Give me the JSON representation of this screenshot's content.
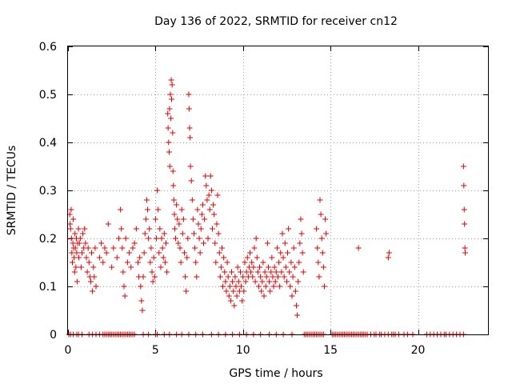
{
  "chart_data": {
    "type": "scatter",
    "title": "Day 136 of 2022, SRMTID for receiver cn12",
    "xlabel": "GPS time / hours",
    "ylabel": "SRMTID / TECUs",
    "xlim": [
      0,
      24
    ],
    "ylim": [
      0,
      0.6
    ],
    "xticks": [
      0,
      5,
      10,
      15,
      20
    ],
    "yticks": [
      0,
      0.1,
      0.2,
      0.3,
      0.4,
      0.5,
      0.6
    ],
    "xtick_labels": [
      "0",
      "5",
      "10",
      "15",
      "20"
    ],
    "ytick_labels": [
      "0",
      "0.1",
      "0.2",
      "0.3",
      "0.4",
      "0.5",
      "0.6"
    ],
    "grid": true,
    "marker": "+",
    "color": "#e00000",
    "series": [
      {
        "name": "SRMTID",
        "points": [
          [
            0.1,
            0.25
          ],
          [
            0.12,
            0.23
          ],
          [
            0.15,
            0.22
          ],
          [
            0.18,
            0.26
          ],
          [
            0.2,
            0.2
          ],
          [
            0.22,
            0.17
          ],
          [
            0.25,
            0.15
          ],
          [
            0.28,
            0.19
          ],
          [
            0.3,
            0.24
          ],
          [
            0.32,
            0.18
          ],
          [
            0.35,
            0.16
          ],
          [
            0.38,
            0.13
          ],
          [
            0.4,
            0.21
          ],
          [
            0.42,
            0.18
          ],
          [
            0.45,
            0.14
          ],
          [
            0.48,
            0.2
          ],
          [
            0.5,
            0.17
          ],
          [
            0.52,
            0.11
          ],
          [
            0.55,
            0.19
          ],
          [
            0.6,
            0.22
          ],
          [
            0.62,
            0.16
          ],
          [
            0.65,
            0.19
          ],
          [
            0.7,
            0.2
          ],
          [
            0.75,
            0.14
          ],
          [
            0.8,
            0.17
          ],
          [
            0.85,
            0.21
          ],
          [
            0.9,
            0.18
          ],
          [
            0.95,
            0.22
          ],
          [
            1.0,
            0.19
          ],
          [
            1.05,
            0.16
          ],
          [
            1.1,
            0.13
          ],
          [
            1.15,
            0.18
          ],
          [
            1.2,
            0.15
          ],
          [
            1.25,
            0.12
          ],
          [
            1.3,
            0.11
          ],
          [
            1.35,
            0.17
          ],
          [
            1.4,
            0.09
          ],
          [
            1.45,
            0.14
          ],
          [
            1.5,
            0.12
          ],
          [
            1.55,
            0.18
          ],
          [
            1.6,
            0.1
          ],
          [
            1.8,
            0.16
          ],
          [
            1.9,
            0.19
          ],
          [
            2.0,
            0.15
          ],
          [
            2.1,
            0.18
          ],
          [
            2.2,
            0.17
          ],
          [
            2.3,
            0.23
          ],
          [
            2.5,
            0.14
          ],
          [
            2.6,
            0.18
          ],
          [
            2.8,
            0.16
          ],
          [
            2.9,
            0.2
          ],
          [
            3.0,
            0.26
          ],
          [
            3.05,
            0.22
          ],
          [
            3.1,
            0.18
          ],
          [
            3.15,
            0.13
          ],
          [
            3.2,
            0.1
          ],
          [
            3.25,
            0.08
          ],
          [
            3.3,
            0.2
          ],
          [
            3.4,
            0.15
          ],
          [
            3.5,
            0.17
          ],
          [
            3.6,
            0.14
          ],
          [
            3.7,
            0.18
          ],
          [
            3.8,
            0.19
          ],
          [
            3.9,
            0.22
          ],
          [
            4.0,
            0.15
          ],
          [
            4.05,
            0.12
          ],
          [
            4.1,
            0.16
          ],
          [
            4.15,
            0.1
          ],
          [
            4.2,
            0.07
          ],
          [
            4.25,
            0.05
          ],
          [
            4.3,
            0.12
          ],
          [
            4.35,
            0.17
          ],
          [
            4.4,
            0.21
          ],
          [
            4.45,
            0.24
          ],
          [
            4.5,
            0.28
          ],
          [
            4.55,
            0.26
          ],
          [
            4.6,
            0.2
          ],
          [
            4.65,
            0.22
          ],
          [
            4.7,
            0.15
          ],
          [
            4.75,
            0.18
          ],
          [
            4.8,
            0.13
          ],
          [
            4.85,
            0.11
          ],
          [
            4.9,
            0.16
          ],
          [
            4.95,
            0.12
          ],
          [
            5.0,
            0.24
          ],
          [
            5.05,
            0.2
          ],
          [
            5.1,
            0.3
          ],
          [
            5.15,
            0.26
          ],
          [
            5.2,
            0.17
          ],
          [
            5.25,
            0.22
          ],
          [
            5.3,
            0.14
          ],
          [
            5.35,
            0.2
          ],
          [
            5.4,
            0.18
          ],
          [
            5.45,
            0.16
          ],
          [
            5.5,
            0.21
          ],
          [
            5.55,
            0.15
          ],
          [
            5.6,
            0.19
          ],
          [
            5.65,
            0.13
          ],
          [
            5.7,
            0.46
          ],
          [
            5.72,
            0.43
          ],
          [
            5.75,
            0.4
          ],
          [
            5.78,
            0.38
          ],
          [
            5.8,
            0.47
          ],
          [
            5.82,
            0.35
          ],
          [
            5.85,
            0.5
          ],
          [
            5.88,
            0.45
          ],
          [
            5.9,
            0.53
          ],
          [
            5.92,
            0.49
          ],
          [
            5.95,
            0.52
          ],
          [
            5.98,
            0.42
          ],
          [
            6.0,
            0.34
          ],
          [
            6.02,
            0.31
          ],
          [
            6.05,
            0.28
          ],
          [
            6.08,
            0.25
          ],
          [
            6.1,
            0.22
          ],
          [
            6.15,
            0.2
          ],
          [
            6.2,
            0.27
          ],
          [
            6.25,
            0.24
          ],
          [
            6.3,
            0.19
          ],
          [
            6.35,
            0.23
          ],
          [
            6.4,
            0.18
          ],
          [
            6.45,
            0.15
          ],
          [
            6.5,
            0.26
          ],
          [
            6.55,
            0.21
          ],
          [
            6.6,
            0.24
          ],
          [
            6.65,
            0.17
          ],
          [
            6.7,
            0.12
          ],
          [
            6.75,
            0.09
          ],
          [
            6.8,
            0.16
          ],
          [
            6.85,
            0.2
          ],
          [
            6.9,
            0.5
          ],
          [
            6.92,
            0.47
          ],
          [
            6.95,
            0.43
          ],
          [
            6.98,
            0.41
          ],
          [
            7.0,
            0.35
          ],
          [
            7.05,
            0.32
          ],
          [
            7.1,
            0.28
          ],
          [
            7.15,
            0.24
          ],
          [
            7.2,
            0.21
          ],
          [
            7.25,
            0.18
          ],
          [
            7.3,
            0.15
          ],
          [
            7.35,
            0.12
          ],
          [
            7.4,
            0.26
          ],
          [
            7.45,
            0.23
          ],
          [
            7.5,
            0.2
          ],
          [
            7.55,
            0.17
          ],
          [
            7.6,
            0.22
          ],
          [
            7.65,
            0.25
          ],
          [
            7.7,
            0.27
          ],
          [
            7.75,
            0.19
          ],
          [
            7.8,
            0.24
          ],
          [
            7.85,
            0.33
          ],
          [
            7.9,
            0.31
          ],
          [
            7.95,
            0.28
          ],
          [
            8.0,
            0.2
          ],
          [
            8.05,
            0.29
          ],
          [
            8.1,
            0.26
          ],
          [
            8.15,
            0.33
          ],
          [
            8.2,
            0.3
          ],
          [
            8.25,
            0.22
          ],
          [
            8.3,
            0.27
          ],
          [
            8.35,
            0.25
          ],
          [
            8.4,
            0.19
          ],
          [
            8.45,
            0.15
          ],
          [
            8.5,
            0.23
          ],
          [
            8.55,
            0.29
          ],
          [
            8.6,
            0.21
          ],
          [
            8.65,
            0.17
          ],
          [
            8.7,
            0.12
          ],
          [
            8.75,
            0.14
          ],
          [
            8.8,
            0.18
          ],
          [
            8.85,
            0.1
          ],
          [
            8.9,
            0.16
          ],
          [
            8.95,
            0.13
          ],
          [
            9.0,
            0.11
          ],
          [
            9.05,
            0.09
          ],
          [
            9.1,
            0.15
          ],
          [
            9.15,
            0.12
          ],
          [
            9.2,
            0.08
          ],
          [
            9.25,
            0.1
          ],
          [
            9.3,
            0.07
          ],
          [
            9.35,
            0.13
          ],
          [
            9.4,
            0.11
          ],
          [
            9.45,
            0.09
          ],
          [
            9.5,
            0.06
          ],
          [
            9.55,
            0.12
          ],
          [
            9.6,
            0.1
          ],
          [
            9.65,
            0.08
          ],
          [
            9.7,
            0.14
          ],
          [
            9.75,
            0.11
          ],
          [
            9.8,
            0.09
          ],
          [
            9.85,
            0.13
          ],
          [
            9.9,
            0.1
          ],
          [
            9.95,
            0.07
          ],
          [
            10.0,
            0.12
          ],
          [
            10.05,
            0.09
          ],
          [
            10.1,
            0.15
          ],
          [
            10.15,
            0.11
          ],
          [
            10.2,
            0.13
          ],
          [
            10.25,
            0.16
          ],
          [
            10.3,
            0.12
          ],
          [
            10.35,
            0.14
          ],
          [
            10.4,
            0.17
          ],
          [
            10.45,
            0.13
          ],
          [
            10.5,
            0.15
          ],
          [
            10.55,
            0.12
          ],
          [
            10.6,
            0.14
          ],
          [
            10.65,
            0.18
          ],
          [
            10.7,
            0.11
          ],
          [
            10.75,
            0.2
          ],
          [
            10.8,
            0.16
          ],
          [
            10.85,
            0.13
          ],
          [
            10.9,
            0.1
          ],
          [
            10.95,
            0.14
          ],
          [
            11.0,
            0.12
          ],
          [
            11.05,
            0.09
          ],
          [
            11.1,
            0.11
          ],
          [
            11.15,
            0.15
          ],
          [
            11.2,
            0.08
          ],
          [
            11.25,
            0.13
          ],
          [
            11.3,
            0.1
          ],
          [
            11.35,
            0.12
          ],
          [
            11.4,
            0.19
          ],
          [
            11.45,
            0.14
          ],
          [
            11.5,
            0.11
          ],
          [
            11.55,
            0.09
          ],
          [
            11.6,
            0.13
          ],
          [
            11.65,
            0.16
          ],
          [
            11.7,
            0.12
          ],
          [
            11.75,
            0.1
          ],
          [
            11.8,
            0.14
          ],
          [
            11.85,
            0.11
          ],
          [
            11.9,
            0.13
          ],
          [
            11.95,
            0.18
          ],
          [
            12.0,
            0.12
          ],
          [
            12.05,
            0.15
          ],
          [
            12.1,
            0.1
          ],
          [
            12.15,
            0.17
          ],
          [
            12.2,
            0.13
          ],
          [
            12.25,
            0.21
          ],
          [
            12.3,
            0.16
          ],
          [
            12.35,
            0.12
          ],
          [
            12.4,
            0.19
          ],
          [
            12.45,
            0.14
          ],
          [
            12.5,
            0.11
          ],
          [
            12.55,
            0.17
          ],
          [
            12.6,
            0.22
          ],
          [
            12.65,
            0.13
          ],
          [
            12.7,
            0.1
          ],
          [
            12.75,
            0.15
          ],
          [
            12.8,
            0.08
          ],
          [
            12.85,
            0.12
          ],
          [
            12.9,
            0.18
          ],
          [
            12.95,
            0.14
          ],
          [
            13.0,
            0.09
          ],
          [
            13.05,
            0.06
          ],
          [
            13.1,
            0.04
          ],
          [
            13.15,
            0.11
          ],
          [
            13.2,
            0.15
          ],
          [
            13.25,
            0.19
          ],
          [
            13.3,
            0.24
          ],
          [
            13.35,
            0.21
          ],
          [
            13.4,
            0.17
          ],
          [
            13.45,
            0.13
          ],
          [
            14.2,
            0.22
          ],
          [
            14.25,
            0.18
          ],
          [
            14.3,
            0.15
          ],
          [
            14.35,
            0.12
          ],
          [
            14.4,
            0.28
          ],
          [
            14.45,
            0.25
          ],
          [
            14.5,
            0.2
          ],
          [
            14.55,
            0.17
          ],
          [
            14.6,
            0.14
          ],
          [
            14.65,
            0.1
          ],
          [
            14.7,
            0.24
          ],
          [
            14.75,
            0.21
          ],
          [
            16.6,
            0.18
          ],
          [
            18.3,
            0.16
          ],
          [
            18.35,
            0.17
          ],
          [
            22.6,
            0.35
          ],
          [
            22.62,
            0.31
          ],
          [
            22.64,
            0.26
          ],
          [
            22.66,
            0.23
          ],
          [
            22.68,
            0.18
          ],
          [
            22.7,
            0.17
          ]
        ]
      }
    ],
    "zero_points_x": [
      0.05,
      0.15,
      0.3,
      0.5,
      0.6,
      0.8,
      1.2,
      1.4,
      1.6,
      1.8,
      2.0,
      2.1,
      2.2,
      2.3,
      2.4,
      2.5,
      2.6,
      2.7,
      2.8,
      2.9,
      3.0,
      3.1,
      3.2,
      3.3,
      3.4,
      3.5,
      3.6,
      3.7,
      3.8,
      4.3,
      4.6,
      5.0,
      5.1,
      5.5,
      5.8,
      6.2,
      6.5,
      6.9,
      7.3,
      7.7,
      8.2,
      8.6,
      9.0,
      9.4,
      9.8,
      10.2,
      10.6,
      11.0,
      11.5,
      11.9,
      12.3,
      12.8,
      13.5,
      13.6,
      13.7,
      13.8,
      13.9,
      14.0,
      14.1,
      14.2,
      14.3,
      14.4,
      14.5,
      14.6,
      15.1,
      15.2,
      15.3,
      15.4,
      15.5,
      15.6,
      15.7,
      15.8,
      15.9,
      16.0,
      16.1,
      16.2,
      16.3,
      16.4,
      16.5,
      16.6,
      16.7,
      16.8,
      16.9,
      17.0,
      17.1,
      17.3,
      17.5,
      17.6,
      17.8,
      17.9,
      18.1,
      18.3,
      18.5,
      18.6,
      18.7,
      18.9,
      19.2,
      19.4,
      19.7,
      20.5,
      20.7,
      20.9,
      21.1,
      21.3,
      21.5,
      21.6,
      21.8,
      22.0,
      22.2,
      22.4,
      22.6
    ]
  }
}
